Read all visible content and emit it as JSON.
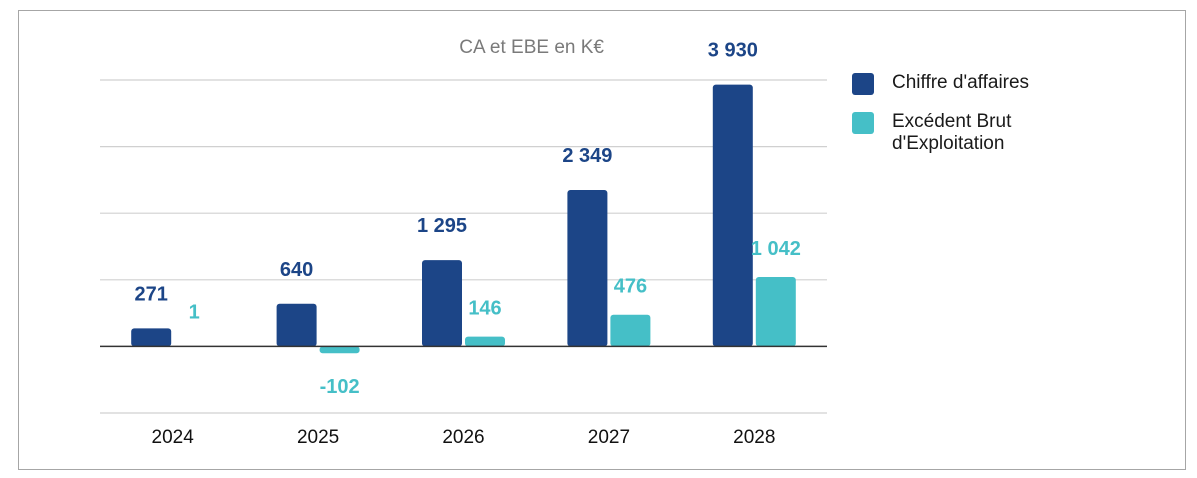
{
  "chart_data": {
    "type": "bar",
    "title": "CA et EBE en K€",
    "categories": [
      "2024",
      "2025",
      "2026",
      "2027",
      "2028"
    ],
    "series": [
      {
        "name": "Chiffre d'affaires",
        "values": [
          271,
          640,
          1295,
          2349,
          3930
        ],
        "labels": [
          "271",
          "640",
          "1 295",
          "2 349",
          "3 930"
        ],
        "color": "#1c4587"
      },
      {
        "name": "Excédent Brut d'Exploitation",
        "values": [
          1,
          -102,
          146,
          476,
          1042
        ],
        "labels": [
          "1",
          "-102",
          "146",
          "476",
          "1 042"
        ],
        "color": "#45bfc7"
      }
    ],
    "ylim": [
      -1000,
      4000
    ],
    "grid": true,
    "legend": "right",
    "xlabel": "",
    "ylabel": ""
  }
}
